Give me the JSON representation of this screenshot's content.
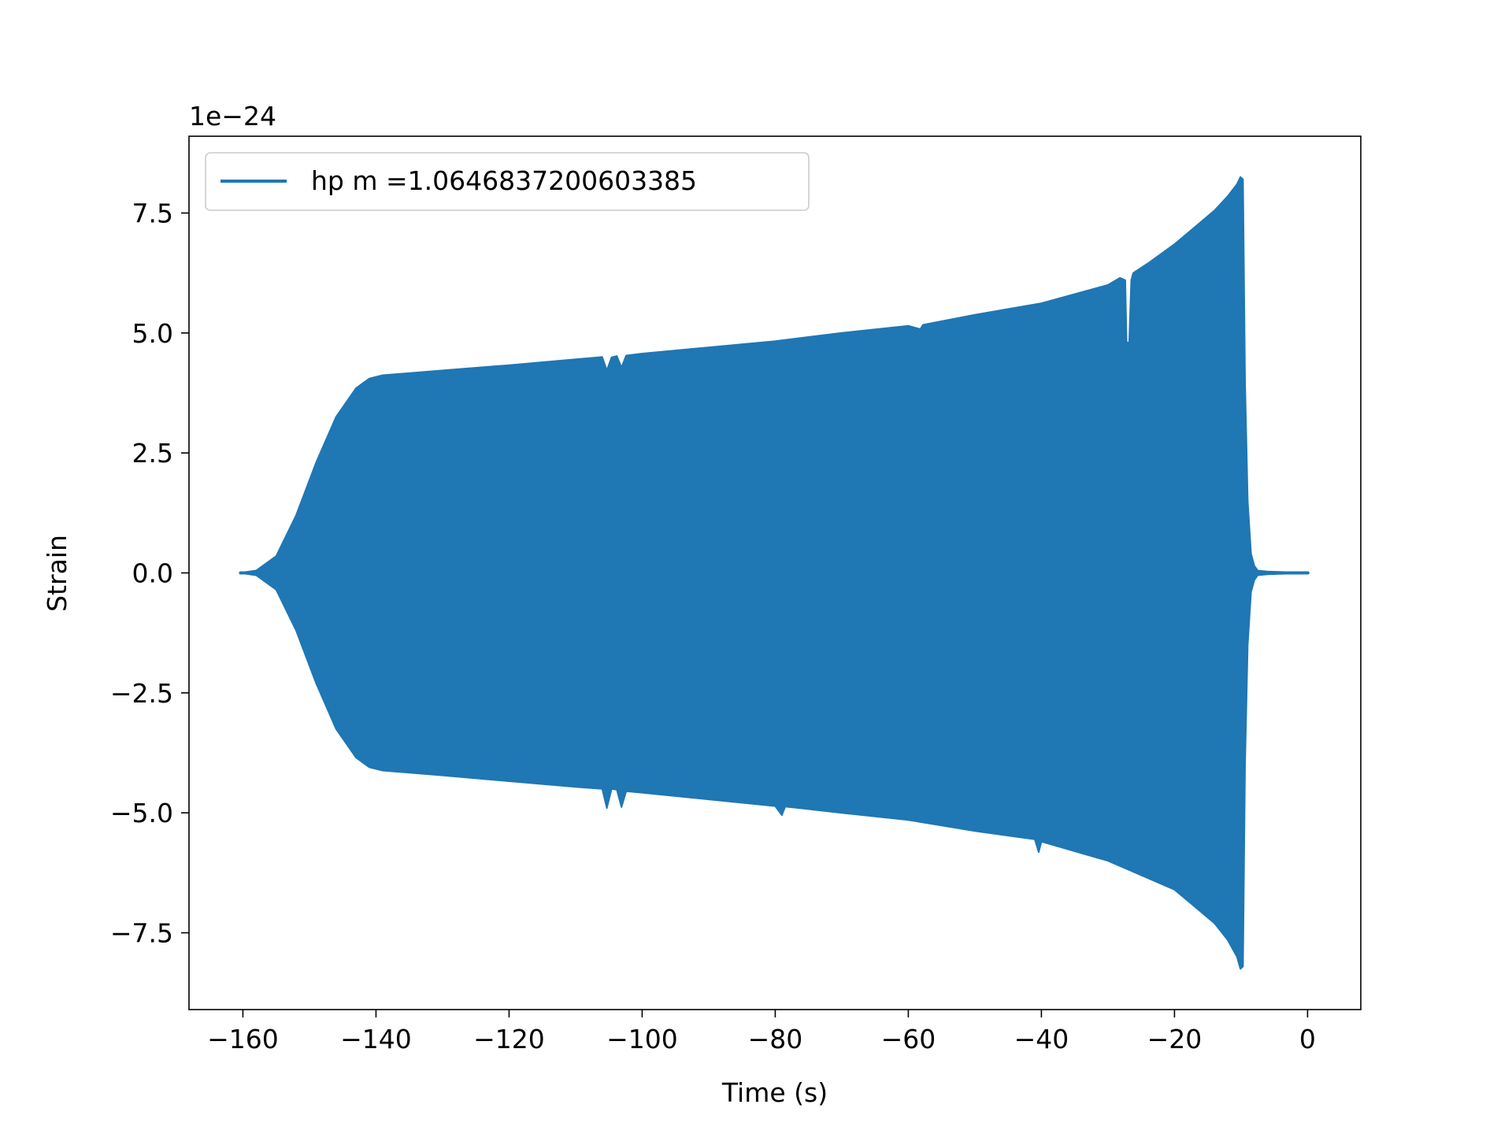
{
  "chart_data": {
    "type": "line",
    "title": "",
    "xlabel": "Time (s)",
    "ylabel": "Strain",
    "offset_text": "1e−24",
    "xlim": [
      -168.1,
      8.0
    ],
    "ylim": [
      -9.1,
      9.1
    ],
    "x_ticks": [
      -160,
      -140,
      -120,
      -100,
      -80,
      -60,
      -40,
      -20,
      0
    ],
    "x_tick_labels": [
      "−160",
      "−140",
      "−120",
      "−100",
      "−80",
      "−60",
      "−40",
      "−20",
      "0"
    ],
    "y_ticks": [
      7.5,
      5.0,
      2.5,
      0.0,
      -2.5,
      -5.0,
      -7.5
    ],
    "y_tick_labels": [
      "7.5",
      "5.0",
      "2.5",
      "0.0",
      "−2.5",
      "−5.0",
      "−7.5"
    ],
    "grid": false,
    "legend_position": "top-left",
    "series": [
      {
        "name": "hp m =1.0646837200603385",
        "color": "#1f77b4",
        "envelope_upper": {
          "x": [
            -160.5,
            -158,
            -155,
            -152,
            -149,
            -146,
            -143,
            -141,
            -139,
            -130,
            -120,
            -110,
            -106,
            -105.3,
            -104.6,
            -103.8,
            -103.1,
            -102.4,
            -100,
            -90,
            -80,
            -70,
            -60,
            -58.2,
            -57.8,
            -50,
            -40,
            -30,
            -28.2,
            -27.4,
            -27.2,
            -26.8,
            -26.5,
            -26.2,
            -24,
            -20,
            -17,
            -14,
            -12,
            -10.6,
            -10.1,
            -9.7,
            -9.4,
            -9.0,
            -8.5,
            -8.0,
            -7.5,
            -6.0,
            0.2
          ],
          "y": [
            0.0,
            0.05,
            0.35,
            1.2,
            2.3,
            3.25,
            3.85,
            4.05,
            4.12,
            4.22,
            4.33,
            4.45,
            4.5,
            4.22,
            4.49,
            4.52,
            4.28,
            4.53,
            4.57,
            4.7,
            4.83,
            5.0,
            5.15,
            5.08,
            5.17,
            5.38,
            5.62,
            6.0,
            6.15,
            6.1,
            4.8,
            4.8,
            6.1,
            6.25,
            6.45,
            6.85,
            7.2,
            7.55,
            7.85,
            8.1,
            8.25,
            8.2,
            4.0,
            1.5,
            0.4,
            0.15,
            0.05,
            0.03,
            0.0
          ]
        },
        "envelope_lower": {
          "x": [
            -160.5,
            -158,
            -155,
            -152,
            -149,
            -146,
            -143,
            -141,
            -139,
            -130,
            -120,
            -110,
            -106,
            -105.3,
            -104.6,
            -103.8,
            -103.1,
            -102.4,
            -100,
            -90,
            -80,
            -79,
            -78.5,
            -70,
            -60,
            -50,
            -41,
            -40.4,
            -40,
            -30,
            -20,
            -17,
            -14,
            -12,
            -10.6,
            -10.1,
            -9.7,
            -9.4,
            -9.0,
            -8.5,
            -8.0,
            -7.5,
            -6.0,
            0.2
          ],
          "y": [
            0.0,
            -0.05,
            -0.35,
            -1.2,
            -2.3,
            -3.25,
            -3.85,
            -4.05,
            -4.12,
            -4.22,
            -4.34,
            -4.46,
            -4.5,
            -4.9,
            -4.5,
            -4.52,
            -4.88,
            -4.55,
            -4.58,
            -4.72,
            -4.86,
            -5.05,
            -4.87,
            -5.0,
            -5.15,
            -5.38,
            -5.55,
            -5.82,
            -5.6,
            -6.0,
            -6.6,
            -6.95,
            -7.3,
            -7.65,
            -8.0,
            -8.25,
            -8.2,
            -4.0,
            -1.5,
            -0.4,
            -0.15,
            -0.05,
            -0.03,
            0.0
          ]
        }
      }
    ]
  }
}
